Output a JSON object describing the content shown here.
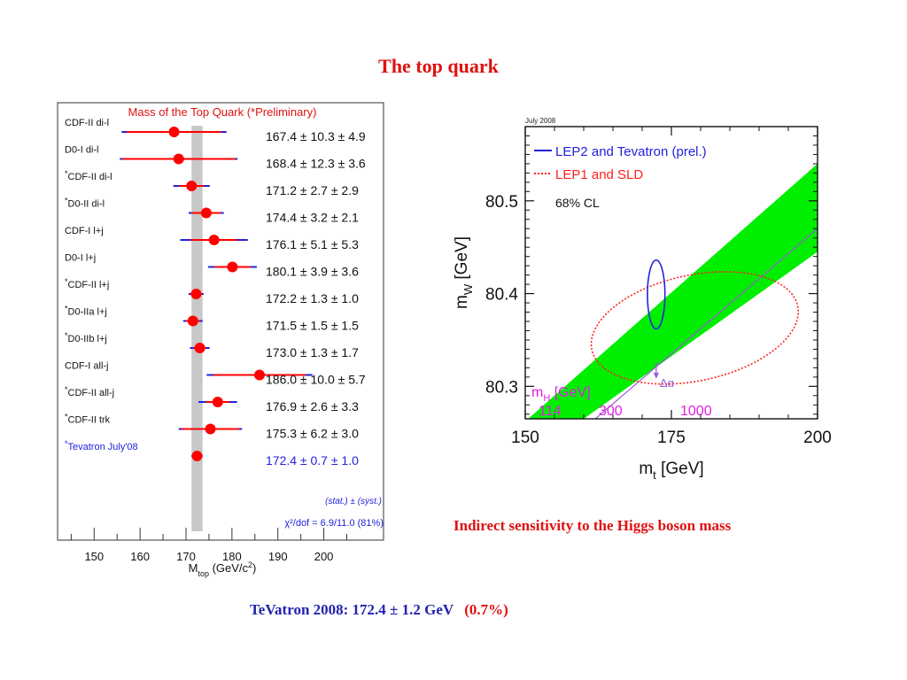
{
  "slide": {
    "title": "The top quark",
    "right_caption": "Indirect sensitivity to the Higgs boson mass",
    "footer_main": "TeVatron 2008: 172.4 ± 1.2 GeV",
    "footer_pct": "(0.7%)"
  },
  "colors": {
    "title_red": "#e01010",
    "footer_blue": "#2323b0",
    "band_green": "#00ee00",
    "point_red": "#ff0000",
    "bar_blue": "#2222dd"
  },
  "chart_data": [
    {
      "type": "scatter",
      "title": "Mass of the Top Quark (*Preliminary)",
      "xlabel": "M_top (GeV/c²)",
      "xlim": [
        143,
        213
      ],
      "xticks": [
        150,
        160,
        170,
        180,
        190,
        200
      ],
      "band": {
        "from": 171.2,
        "to": 173.6
      },
      "measurements": [
        {
          "label": "CDF-II di-l",
          "starred": false,
          "value": 167.4,
          "stat": 10.3,
          "syst": 4.9,
          "text": "167.4 ± 10.3 ± 4.9"
        },
        {
          "label": "D0-I di-l",
          "starred": false,
          "value": 168.4,
          "stat": 12.3,
          "syst": 3.6,
          "text": "168.4 ± 12.3 ± 3.6"
        },
        {
          "label": "CDF-II di-l",
          "starred": true,
          "value": 171.2,
          "stat": 2.7,
          "syst": 2.9,
          "text": "171.2 ± 2.7 ± 2.9"
        },
        {
          "label": "D0-II di-l",
          "starred": true,
          "value": 174.4,
          "stat": 3.2,
          "syst": 2.1,
          "text": "174.4 ± 3.2 ± 2.1"
        },
        {
          "label": "CDF-I l+j",
          "starred": false,
          "value": 176.1,
          "stat": 5.1,
          "syst": 5.3,
          "text": "176.1 ± 5.1 ± 5.3"
        },
        {
          "label": "D0-I l+j",
          "starred": false,
          "value": 180.1,
          "stat": 3.9,
          "syst": 3.6,
          "text": "180.1 ± 3.9 ± 3.6"
        },
        {
          "label": "CDF-II l+j",
          "starred": true,
          "value": 172.2,
          "stat": 1.3,
          "syst": 1.0,
          "text": "172.2 ± 1.3 ± 1.0"
        },
        {
          "label": "D0-IIa l+j",
          "starred": true,
          "value": 171.5,
          "stat": 1.5,
          "syst": 1.5,
          "text": "171.5 ± 1.5 ± 1.5"
        },
        {
          "label": "D0-IIb l+j",
          "starred": true,
          "value": 173.0,
          "stat": 1.3,
          "syst": 1.7,
          "text": "173.0 ± 1.3 ± 1.7"
        },
        {
          "label": "CDF-I all-j",
          "starred": false,
          "value": 186.0,
          "stat": 10.0,
          "syst": 5.7,
          "text": "186.0 ± 10.0 ± 5.7"
        },
        {
          "label": "CDF-II all-j",
          "starred": true,
          "value": 176.9,
          "stat": 2.6,
          "syst": 3.3,
          "text": "176.9 ± 2.6 ± 3.3"
        },
        {
          "label": "CDF-II trk",
          "starred": true,
          "value": 175.3,
          "stat": 6.2,
          "syst": 3.0,
          "text": "175.3 ± 6.2 ± 3.0"
        }
      ],
      "combined": {
        "label": "Tevatron July'08",
        "starred": true,
        "value": 172.4,
        "stat": 0.7,
        "syst": 1.0,
        "text": "172.4 ± 0.7 ± 1.0"
      },
      "combined_note": "(stat.) ± (syst.)",
      "chi2": "χ²/dof = 6.9/11.0 (81%)"
    },
    {
      "type": "line",
      "date_label": "July 2008",
      "xlabel": "m_t [GeV]",
      "ylabel": "m_W [GeV]",
      "xlim": [
        150,
        200
      ],
      "ylim": [
        80.265,
        80.58
      ],
      "xticks": [
        150,
        175,
        200
      ],
      "yticks": [
        80.3,
        80.4,
        80.5
      ],
      "legend": [
        {
          "name": "LEP2 and Tevatron (prel.)",
          "color": "#2222dd",
          "style": "solid"
        },
        {
          "name": "LEP1 and SLD",
          "color": "#ff2020",
          "style": "dotted"
        }
      ],
      "cl_label": "68% CL",
      "blue_ellipse": {
        "mt": 172.4,
        "mw": 80.399,
        "dmt": 1.5,
        "dmw": 0.037
      },
      "red_ellipse": {
        "mt": 179,
        "mw": 80.363,
        "dmt": 18,
        "dmw": 0.057,
        "tilt_deg": 12
      },
      "sm_band": {
        "lower": [
          [
            160,
            80.265
          ],
          [
            200,
            80.445
          ]
        ],
        "upper": [
          [
            150.5,
            80.265
          ],
          [
            200,
            80.54
          ]
        ]
      },
      "sm_line": [
        [
          162,
          80.265
        ],
        [
          200,
          80.47
        ]
      ],
      "higgs": {
        "label": "m_H [GeV]",
        "color": "#e020e0",
        "values": [
          "114",
          "300",
          "1000"
        ]
      },
      "delta_alpha": {
        "label": "Δα",
        "mt": 172.4,
        "mw": 80.31
      }
    }
  ]
}
